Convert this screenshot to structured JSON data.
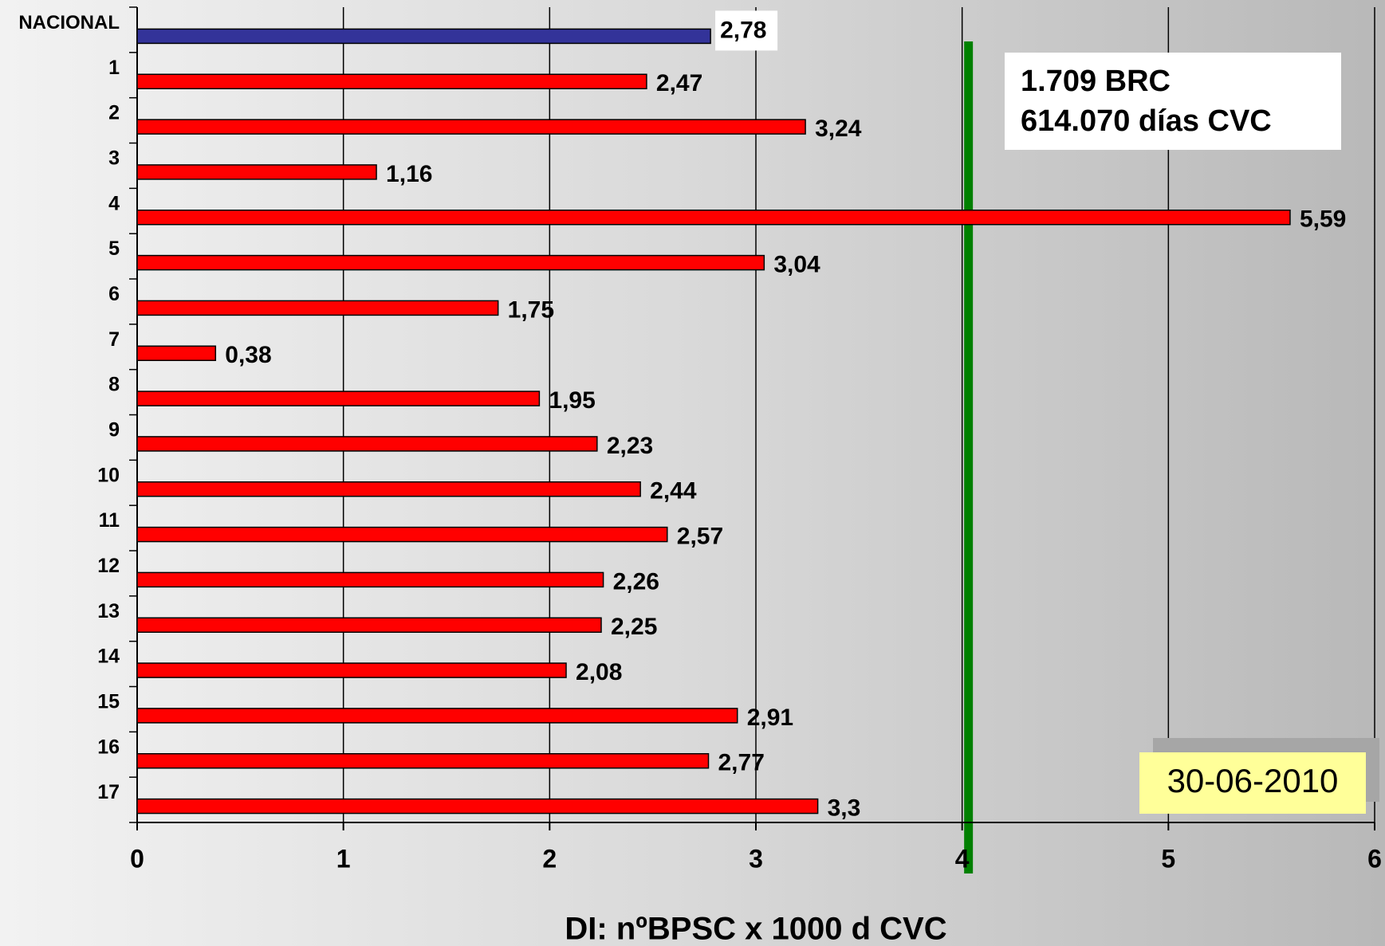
{
  "chart_data": {
    "type": "hbar",
    "categories": [
      "NACIONAL",
      "1",
      "2",
      "3",
      "4",
      "5",
      "6",
      "7",
      "8",
      "9",
      "10",
      "11",
      "12",
      "13",
      "14",
      "15",
      "16",
      "17"
    ],
    "values": [
      2.78,
      2.47,
      3.24,
      1.16,
      5.59,
      3.04,
      1.75,
      0.38,
      1.95,
      2.23,
      2.44,
      2.57,
      2.26,
      2.25,
      2.08,
      2.91,
      2.77,
      3.3
    ],
    "value_labels": [
      "2,78",
      "2,47",
      "3,24",
      "1,16",
      "5,59",
      "3,04",
      "1,75",
      "0,38",
      "1,95",
      "2,23",
      "2,44",
      "2,57",
      "2,26",
      "2,25",
      "2,08",
      "2,91",
      "2,77",
      "3,3"
    ],
    "colors": [
      "#333399",
      "#ff0000",
      "#ff0000",
      "#ff0000",
      "#ff0000",
      "#ff0000",
      "#ff0000",
      "#ff0000",
      "#ff0000",
      "#ff0000",
      "#ff0000",
      "#ff0000",
      "#ff0000",
      "#ff0000",
      "#ff0000",
      "#ff0000",
      "#ff0000",
      "#ff0000"
    ],
    "xlabel": "DI: nºBPSC x 1000 d CVC",
    "xlim": [
      0,
      6
    ],
    "xticks": [
      0,
      1,
      2,
      3,
      4,
      5,
      6
    ],
    "grid": true,
    "reference_line": {
      "value": 4,
      "color": "#008000"
    },
    "annotations": [
      "1.709 BRC",
      "614.070 días CVC",
      "30-06-2010"
    ]
  }
}
